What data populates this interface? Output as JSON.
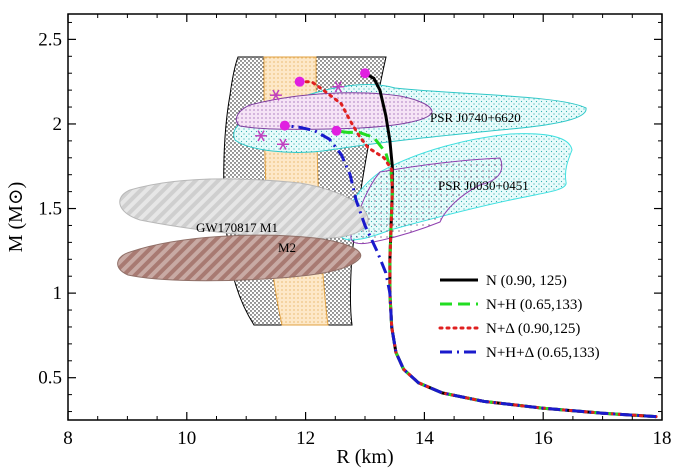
{
  "chart_data": {
    "type": "line",
    "xlabel": "R (km)",
    "ylabel": "M (M⊙)",
    "xlim": [
      8,
      18
    ],
    "ylim": [
      0.25,
      2.65
    ],
    "xticks": [
      8,
      10,
      12,
      14,
      16,
      18
    ],
    "yticks": [
      0.5,
      1,
      1.5,
      2,
      2.5
    ],
    "xtick_labels": [
      "8",
      "10",
      "12",
      "14",
      "16",
      "18"
    ],
    "ytick_labels": [
      "0.5",
      "1",
      "1.5",
      "2",
      "2.5"
    ],
    "legend_position": "bottom-right",
    "regions": [
      {
        "label": "PSR J0740+6620",
        "color": "#40d0d0"
      },
      {
        "label": "PSR J0030+0451",
        "color": "#40d0d0"
      },
      {
        "label": "GW170817 M1",
        "color": "#c8c8c8"
      },
      {
        "label": "M2",
        "color": "#b08a80"
      }
    ],
    "series": [
      {
        "name": "N (0.90, 125)",
        "color": "#000000",
        "style": "solid",
        "points": [
          [
            17.9,
            0.27
          ],
          [
            17.0,
            0.29
          ],
          [
            16.0,
            0.32
          ],
          [
            15.0,
            0.36
          ],
          [
            14.3,
            0.41
          ],
          [
            13.9,
            0.47
          ],
          [
            13.65,
            0.55
          ],
          [
            13.52,
            0.65
          ],
          [
            13.45,
            0.8
          ],
          [
            13.42,
            1.0
          ],
          [
            13.42,
            1.2
          ],
          [
            13.44,
            1.4
          ],
          [
            13.46,
            1.6
          ],
          [
            13.46,
            1.75
          ],
          [
            13.42,
            1.9
          ],
          [
            13.35,
            2.05
          ],
          [
            13.25,
            2.2
          ],
          [
            13.15,
            2.27
          ],
          [
            13.0,
            2.3
          ]
        ]
      },
      {
        "name": "N+H (0.65,133)",
        "color": "#22dd22",
        "style": "dashed",
        "points": [
          [
            17.9,
            0.27
          ],
          [
            17.0,
            0.29
          ],
          [
            16.0,
            0.32
          ],
          [
            15.0,
            0.36
          ],
          [
            14.3,
            0.41
          ],
          [
            13.9,
            0.47
          ],
          [
            13.65,
            0.55
          ],
          [
            13.52,
            0.65
          ],
          [
            13.45,
            0.8
          ],
          [
            13.42,
            1.0
          ],
          [
            13.42,
            1.2
          ],
          [
            13.44,
            1.4
          ],
          [
            13.46,
            1.6
          ],
          [
            13.44,
            1.72
          ],
          [
            13.35,
            1.83
          ],
          [
            13.15,
            1.92
          ],
          [
            12.9,
            1.95
          ],
          [
            12.7,
            1.95
          ],
          [
            12.5,
            1.96
          ]
        ]
      },
      {
        "name": "N+Δ (0.90,125)",
        "color": "#e02020",
        "style": "dotted",
        "points": [
          [
            17.9,
            0.27
          ],
          [
            17.0,
            0.29
          ],
          [
            16.0,
            0.32
          ],
          [
            15.0,
            0.36
          ],
          [
            14.3,
            0.41
          ],
          [
            13.9,
            0.47
          ],
          [
            13.65,
            0.55
          ],
          [
            13.52,
            0.65
          ],
          [
            13.45,
            0.8
          ],
          [
            13.42,
            1.0
          ],
          [
            13.42,
            1.2
          ],
          [
            13.44,
            1.4
          ],
          [
            13.46,
            1.6
          ],
          [
            13.45,
            1.73
          ],
          [
            13.32,
            1.8
          ],
          [
            13.05,
            1.86
          ],
          [
            12.9,
            1.93
          ],
          [
            12.75,
            2.02
          ],
          [
            12.6,
            2.12
          ],
          [
            12.3,
            2.2
          ],
          [
            12.1,
            2.25
          ],
          [
            11.9,
            2.25
          ]
        ]
      },
      {
        "name": "N+H+Δ (0.65,133)",
        "color": "#1a1acc",
        "style": "dashdot",
        "points": [
          [
            17.9,
            0.27
          ],
          [
            17.0,
            0.29
          ],
          [
            16.0,
            0.32
          ],
          [
            15.0,
            0.36
          ],
          [
            14.3,
            0.41
          ],
          [
            13.9,
            0.47
          ],
          [
            13.65,
            0.55
          ],
          [
            13.52,
            0.65
          ],
          [
            13.45,
            0.8
          ],
          [
            13.42,
            1.0
          ],
          [
            13.35,
            1.12
          ],
          [
            13.2,
            1.25
          ],
          [
            13.0,
            1.4
          ],
          [
            12.85,
            1.55
          ],
          [
            12.75,
            1.7
          ],
          [
            12.6,
            1.82
          ],
          [
            12.4,
            1.91
          ],
          [
            12.15,
            1.96
          ],
          [
            11.9,
            1.98
          ],
          [
            11.65,
            1.99
          ]
        ]
      }
    ],
    "markers": [
      {
        "x": 13.0,
        "y": 2.3,
        "color": "#e020e0"
      },
      {
        "x": 11.9,
        "y": 2.25,
        "color": "#e020e0"
      },
      {
        "x": 11.65,
        "y": 1.99,
        "color": "#e020e0"
      },
      {
        "x": 12.52,
        "y": 1.96,
        "color": "#e020e0"
      }
    ],
    "asterisks": [
      {
        "x": 11.5,
        "y": 2.17
      },
      {
        "x": 12.55,
        "y": 2.22
      },
      {
        "x": 11.25,
        "y": 1.93
      },
      {
        "x": 11.62,
        "y": 1.88
      }
    ]
  }
}
